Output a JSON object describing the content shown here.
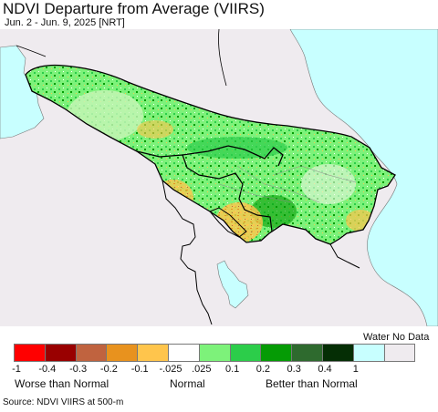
{
  "header": {
    "title": "NDVI Departure from Average (VIIRS)",
    "subtitle": "Jun. 2 - Jun. 9, 2025 [NRT]"
  },
  "map": {
    "region": "South Caucasus",
    "colors": {
      "water": "#c8ffff",
      "land_outside": "#efebef",
      "border": "#000000",
      "inner_border": "#888888"
    }
  },
  "legend": {
    "water_no_data_label": "Water No Data",
    "swatches": [
      {
        "color": "#ff0000"
      },
      {
        "color": "#990000"
      },
      {
        "color": "#c0633f"
      },
      {
        "color": "#e8921e"
      },
      {
        "color": "#ffc54c"
      },
      {
        "color": "#ffffff"
      },
      {
        "color": "#7df27a"
      },
      {
        "color": "#2ccd4a"
      },
      {
        "color": "#059b05"
      },
      {
        "color": "#2e6a2e"
      },
      {
        "color": "#052e05"
      },
      {
        "color": "#c8ffff"
      },
      {
        "color": "#efebef"
      }
    ],
    "ticks": [
      "-1",
      "-0.4",
      "-0.3",
      "-0.2",
      "-0.1",
      "-.025",
      ".025",
      "0.1",
      "0.2",
      "0.3",
      "0.4",
      "1"
    ],
    "categories": [
      "Worse than Normal",
      "Normal",
      "Better than Normal"
    ]
  },
  "footer": {
    "source": "Source: NDVI VIIRS at 500-m"
  }
}
